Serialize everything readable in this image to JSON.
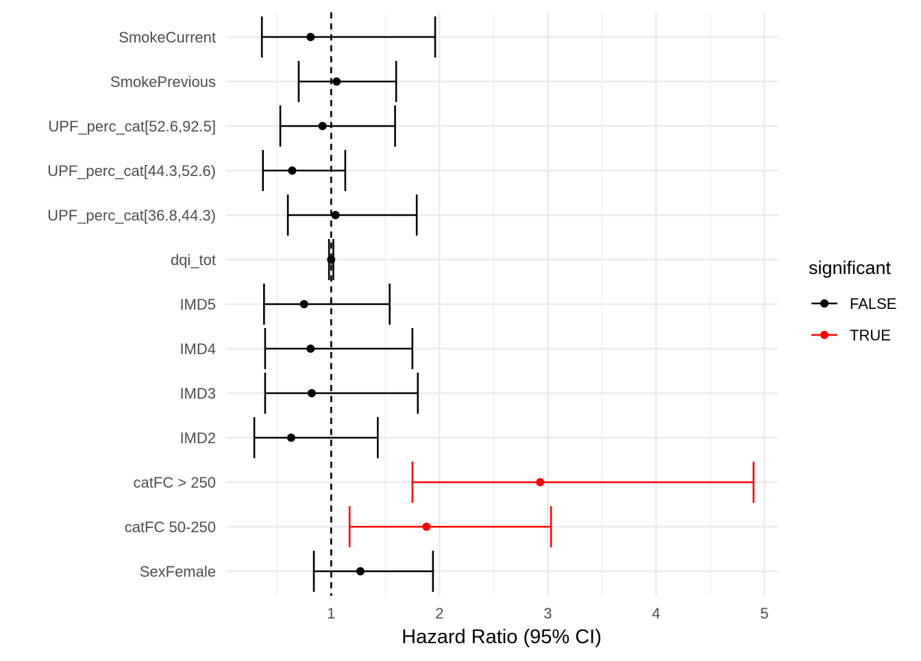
{
  "chart_data": {
    "type": "forest",
    "title": "",
    "xlabel": "Hazard Ratio (95% CI)",
    "ylabel": "",
    "xlim": [
      0.03,
      5.13
    ],
    "x_ticks": [
      1,
      2,
      3,
      4,
      5
    ],
    "x_tick_labels": [
      "1",
      "2",
      "3",
      "4",
      "5"
    ],
    "reference_line": 1,
    "grid": true,
    "legend": {
      "title": "significant",
      "position": "right",
      "entries": [
        {
          "label": "FALSE",
          "color": "#000000"
        },
        {
          "label": "TRUE",
          "color": "#ff0000"
        }
      ]
    },
    "rows": [
      {
        "label": "SmokeCurrent",
        "hr": 0.81,
        "lower": 0.36,
        "upper": 1.96,
        "significant": false
      },
      {
        "label": "SmokePrevious",
        "hr": 1.05,
        "lower": 0.7,
        "upper": 1.6,
        "significant": false
      },
      {
        "label": "UPF_perc_cat[52.6,92.5]",
        "hr": 0.92,
        "lower": 0.53,
        "upper": 1.59,
        "significant": false
      },
      {
        "label": "UPF_perc_cat[44.3,52.6)",
        "hr": 0.64,
        "lower": 0.37,
        "upper": 1.13,
        "significant": false
      },
      {
        "label": "UPF_perc_cat[36.8,44.3)",
        "hr": 1.04,
        "lower": 0.6,
        "upper": 1.79,
        "significant": false
      },
      {
        "label": "dqi_tot",
        "hr": 1.0,
        "lower": 0.98,
        "upper": 1.02,
        "significant": false
      },
      {
        "label": "IMD5",
        "hr": 0.75,
        "lower": 0.38,
        "upper": 1.54,
        "significant": false
      },
      {
        "label": "IMD4",
        "hr": 0.81,
        "lower": 0.39,
        "upper": 1.75,
        "significant": false
      },
      {
        "label": "IMD3",
        "hr": 0.82,
        "lower": 0.39,
        "upper": 1.8,
        "significant": false
      },
      {
        "label": "IMD2",
        "hr": 0.63,
        "lower": 0.29,
        "upper": 1.43,
        "significant": false
      },
      {
        "label": "catFC > 250",
        "hr": 2.93,
        "lower": 1.75,
        "upper": 4.9,
        "significant": true
      },
      {
        "label": "catFC 50-250",
        "hr": 1.88,
        "lower": 1.17,
        "upper": 3.03,
        "significant": true
      },
      {
        "label": "SexFemale",
        "hr": 1.27,
        "lower": 0.84,
        "upper": 1.94,
        "significant": false
      }
    ]
  }
}
